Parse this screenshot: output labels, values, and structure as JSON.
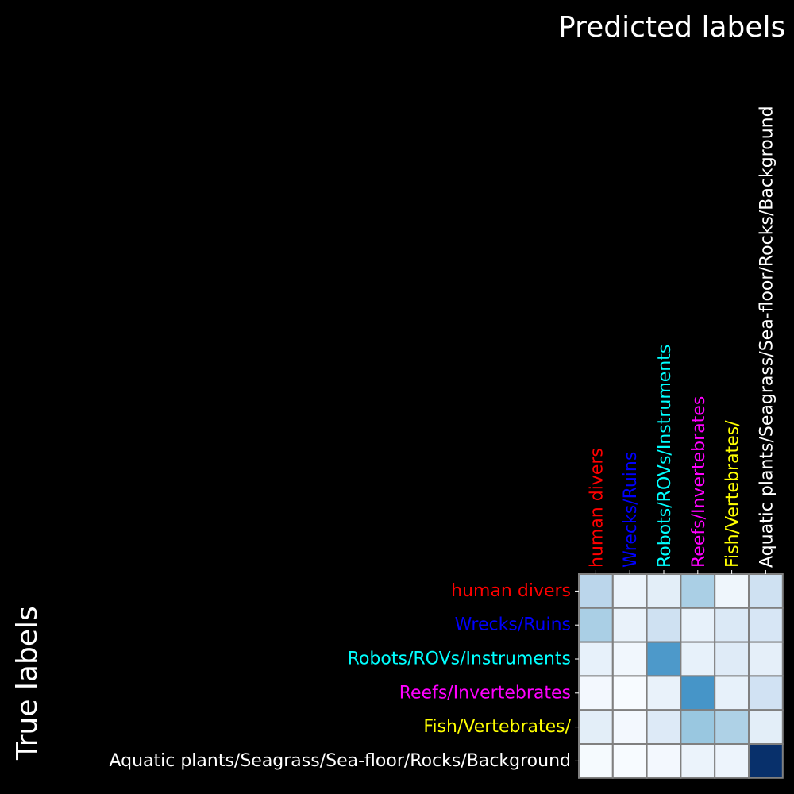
{
  "chart_data": {
    "type": "heatmap",
    "title": "",
    "xlabel": "Predicted labels",
    "ylabel": "True labels",
    "x_categories": [
      "human divers",
      "Wrecks/Ruins",
      "Robots/ROVs/Instruments",
      "Reefs/Invertebrates",
      "Fish/Vertebrates/",
      "Aquatic plants/Seagrass/Sea-floor/Rocks/Background"
    ],
    "y_categories": [
      "human divers",
      "Wrecks/Ruins",
      "Robots/ROVs/Instruments",
      "Reefs/Invertebrates",
      "Fish/Vertebrates/",
      "Aquatic plants/Seagrass/Sea-floor/Rocks/Background"
    ],
    "category_colors": [
      "#ff0000",
      "#0000ff",
      "#00ffff",
      "#ff00ff",
      "#ffff00",
      "#ffffff"
    ],
    "values": [
      [
        0.3,
        0.08,
        0.12,
        0.35,
        0.06,
        0.22
      ],
      [
        0.35,
        0.09,
        0.22,
        0.1,
        0.16,
        0.18
      ],
      [
        0.1,
        0.05,
        0.6,
        0.1,
        0.14,
        0.11
      ],
      [
        0.04,
        0.02,
        0.09,
        0.62,
        0.1,
        0.21
      ],
      [
        0.12,
        0.04,
        0.15,
        0.4,
        0.34,
        0.12
      ],
      [
        0.03,
        0.02,
        0.04,
        0.08,
        0.07,
        1.0
      ]
    ],
    "colormap": "Blues",
    "colorbar": false,
    "grid": true,
    "background": "#000000",
    "axis_text_color": "#ffffff"
  }
}
